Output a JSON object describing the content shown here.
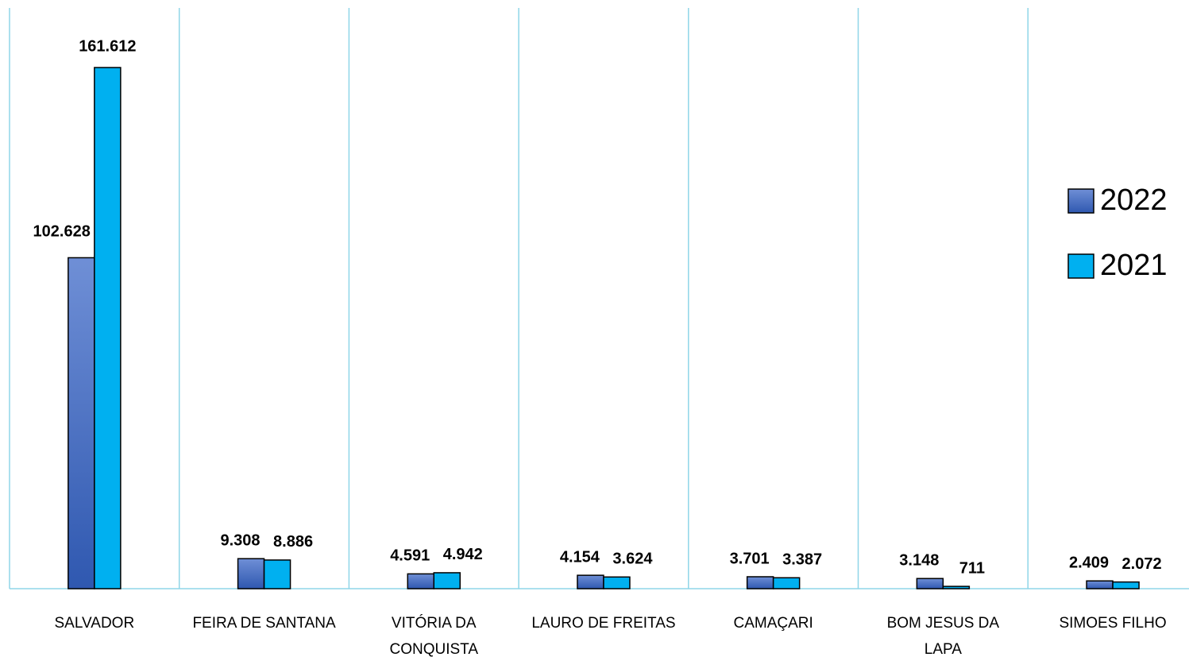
{
  "chart_data": {
    "type": "bar",
    "categories": [
      "SALVADOR",
      "FEIRA DE SANTANA",
      "VITÓRIA DA CONQUISTA",
      "LAURO DE FREITAS",
      "CAMAÇARI",
      "BOM JESUS DA LAPA",
      "SIMOES FILHO"
    ],
    "series": [
      {
        "name": "2022",
        "color": "#4472c4",
        "values": [
          102628,
          9308,
          4591,
          4154,
          3701,
          3148,
          2409
        ],
        "value_labels": [
          "102.628",
          "9.308",
          "4.591",
          "4.154",
          "3.701",
          "3.148",
          "2.409"
        ]
      },
      {
        "name": "2021",
        "color": "#00b0f0",
        "values": [
          161612,
          8886,
          4942,
          3624,
          3387,
          711,
          2072
        ],
        "value_labels": [
          "161.612",
          "8.886",
          "4.942",
          "3.624",
          "3.387",
          "711",
          "2.072"
        ]
      }
    ],
    "legend": "right"
  }
}
